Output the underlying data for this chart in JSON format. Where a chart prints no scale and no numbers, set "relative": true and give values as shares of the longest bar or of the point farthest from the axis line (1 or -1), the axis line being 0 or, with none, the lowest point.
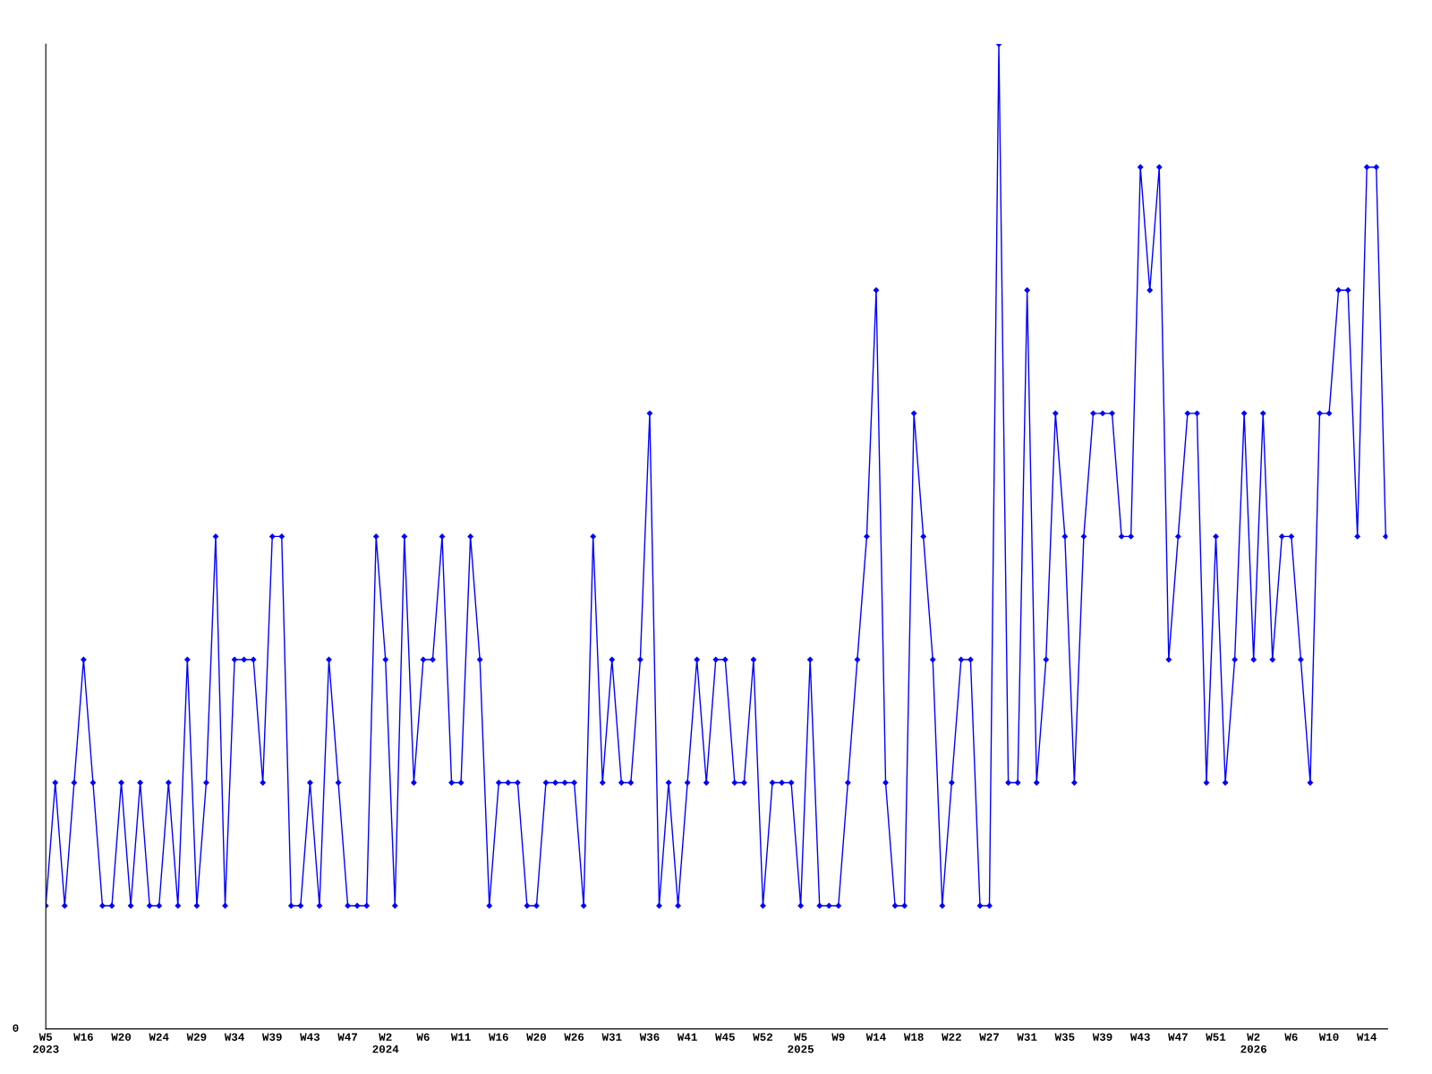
{
  "chart_data": {
    "type": "line",
    "relative": true,
    "color": "#0000ff",
    "marker": "diamond",
    "line_style": "solid",
    "grid": false,
    "legend": false,
    "categories": [
      "W5\n2023",
      null,
      null,
      null,
      "W16",
      null,
      null,
      null,
      "W20",
      null,
      null,
      null,
      "W24",
      null,
      null,
      null,
      "W29",
      null,
      null,
      null,
      "W34",
      null,
      null,
      null,
      "W39",
      null,
      null,
      null,
      "W43",
      null,
      null,
      null,
      "W47",
      null,
      null,
      null,
      "W2\n2024",
      null,
      null,
      null,
      "W6",
      null,
      null,
      null,
      "W11",
      null,
      null,
      null,
      "W16",
      null,
      null,
      null,
      "W20",
      null,
      null,
      null,
      "W26",
      null,
      null,
      null,
      "W31",
      null,
      null,
      null,
      "W36",
      null,
      null,
      null,
      "W41",
      null,
      null,
      null,
      "W45",
      null,
      null,
      null,
      "W52",
      null,
      null,
      null,
      "W5\n2025",
      null,
      null,
      null,
      "W9",
      null,
      null,
      null,
      "W14",
      null,
      null,
      null,
      "W18",
      null,
      null,
      null,
      "W22",
      null,
      null,
      null,
      "W27",
      null,
      null,
      null,
      "W31",
      null,
      null,
      null,
      "W35",
      null,
      null,
      null,
      "W39",
      null,
      null,
      null,
      "W43",
      null,
      null,
      null,
      "W47",
      null,
      null,
      null,
      "W51",
      null,
      null,
      null,
      "W2\n2026",
      null,
      null,
      null,
      "W6",
      null,
      null,
      null,
      "W10",
      null,
      null,
      null,
      "W14",
      null,
      null
    ],
    "values": [
      0.125,
      0.25,
      0.125,
      0.25,
      0.375,
      0.25,
      0.125,
      0.125,
      0.25,
      0.125,
      0.25,
      0.125,
      0.125,
      0.25,
      0.125,
      0.375,
      0.125,
      0.25,
      0.5,
      0.125,
      0.375,
      0.375,
      0.375,
      0.25,
      0.5,
      0.5,
      0.125,
      0.125,
      0.25,
      0.125,
      0.375,
      0.25,
      0.125,
      0.125,
      0.125,
      0.5,
      0.375,
      0.125,
      0.5,
      0.25,
      0.375,
      0.375,
      0.5,
      0.25,
      0.25,
      0.5,
      0.375,
      0.125,
      0.25,
      0.25,
      0.25,
      0.125,
      0.125,
      0.25,
      0.25,
      0.25,
      0.25,
      0.125,
      0.5,
      0.25,
      0.375,
      0.25,
      0.25,
      0.375,
      0.625,
      0.125,
      0.25,
      0.125,
      0.25,
      0.375,
      0.25,
      0.375,
      0.375,
      0.25,
      0.25,
      0.375,
      0.125,
      0.25,
      0.25,
      0.25,
      0.125,
      0.375,
      0.125,
      0.125,
      0.125,
      0.25,
      0.375,
      0.5,
      0.75,
      0.25,
      0.125,
      0.125,
      0.625,
      0.5,
      0.375,
      0.125,
      0.25,
      0.375,
      0.375,
      0.125,
      0.125,
      1,
      0.25,
      0.25,
      0.75,
      0.25,
      0.375,
      0.625,
      0.5,
      0.25,
      0.5,
      0.625,
      0.625,
      0.625,
      0.5,
      0.5,
      0.875,
      0.75,
      0.875,
      0.375,
      0.5,
      0.625,
      0.625,
      0.25,
      0.5,
      0.25,
      0.375,
      0.625,
      0.375,
      0.625,
      0.375,
      0.5,
      0.5,
      0.375,
      0.25,
      0.625,
      0.625,
      0.75,
      0.75,
      0.5,
      0.875,
      0.875,
      0.5
    ],
    "annotations": [
      "0"
    ]
  }
}
